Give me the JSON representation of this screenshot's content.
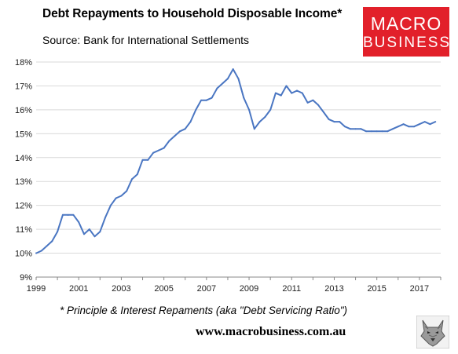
{
  "header": {
    "title": "Debt Repayments to Household Disposable Income*",
    "subtitle": "Source: Bank for International Settlements"
  },
  "logo": {
    "line1": "MACRO",
    "line2": "BUSINESS",
    "color": "#e2202a"
  },
  "footer": {
    "footnote": "* Principle & Interest Repaments (aka \"Debt Servicing Ratio\")",
    "website": "www.macrobusiness.com.au"
  },
  "icons": {
    "wolf": "wolf-head-icon"
  },
  "chart_data": {
    "type": "line",
    "title": "Debt Repayments to Household Disposable Income*",
    "xlabel": "",
    "ylabel": "",
    "xlim": [
      1999,
      2018
    ],
    "ylim": [
      9,
      18
    ],
    "grid": "horizontal",
    "line_color": "#4a76c2",
    "x_ticks": [
      "1999",
      "2001",
      "2003",
      "2005",
      "2007",
      "2009",
      "2011",
      "2013",
      "2015",
      "2017"
    ],
    "y_ticks": [
      "9%",
      "10%",
      "11%",
      "12%",
      "13%",
      "14%",
      "15%",
      "16%",
      "17%",
      "18%"
    ],
    "series": [
      {
        "x": [
          1999.0,
          1999.25,
          1999.5,
          1999.75,
          2000.0,
          2000.25,
          2000.5,
          2000.75,
          2001.0,
          2001.25,
          2001.5,
          2001.75,
          2002.0,
          2002.25,
          2002.5,
          2002.75,
          2003.0,
          2003.25,
          2003.5,
          2003.75,
          2004.0,
          2004.25,
          2004.5,
          2004.75,
          2005.0,
          2005.25,
          2005.5,
          2005.75,
          2006.0,
          2006.25,
          2006.5,
          2006.75,
          2007.0,
          2007.25,
          2007.5,
          2007.75,
          2008.0,
          2008.25,
          2008.5,
          2008.75,
          2009.0,
          2009.25,
          2009.5,
          2009.75,
          2010.0,
          2010.25,
          2010.5,
          2010.75,
          2011.0,
          2011.25,
          2011.5,
          2011.75,
          2012.0,
          2012.25,
          2012.5,
          2012.75,
          2013.0,
          2013.25,
          2013.5,
          2013.75,
          2014.0,
          2014.25,
          2014.5,
          2014.75,
          2015.0,
          2015.25,
          2015.5,
          2015.75,
          2016.0,
          2016.25,
          2016.5,
          2016.75,
          2017.0,
          2017.25,
          2017.5,
          2017.75
        ],
        "values": [
          10.0,
          10.1,
          10.3,
          10.5,
          10.9,
          11.6,
          11.6,
          11.6,
          11.3,
          10.8,
          11.0,
          10.7,
          10.9,
          11.5,
          12.0,
          12.3,
          12.4,
          12.6,
          13.1,
          13.3,
          13.9,
          13.9,
          14.2,
          14.3,
          14.4,
          14.7,
          14.9,
          15.1,
          15.2,
          15.5,
          16.0,
          16.4,
          16.4,
          16.5,
          16.9,
          17.1,
          17.3,
          17.7,
          17.3,
          16.5,
          16.0,
          15.2,
          15.5,
          15.7,
          16.0,
          16.7,
          16.6,
          17.0,
          16.7,
          16.8,
          16.7,
          16.3,
          16.4,
          16.2,
          15.9,
          15.6,
          15.5,
          15.5,
          15.3,
          15.2,
          15.2,
          15.2,
          15.1,
          15.1,
          15.1,
          15.1,
          15.1,
          15.2,
          15.3,
          15.4,
          15.3,
          15.3,
          15.4,
          15.5,
          15.4,
          15.5
        ]
      }
    ]
  }
}
